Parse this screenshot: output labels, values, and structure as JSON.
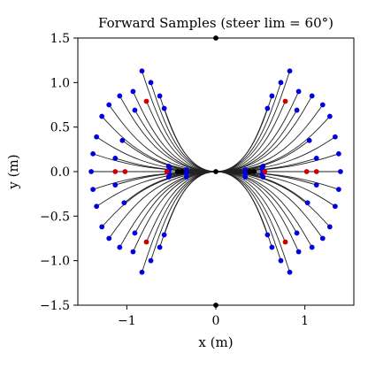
{
  "chart_data": {
    "type": "scatter",
    "title": "Forward Samples (steer lim = 60°)",
    "xlabel": "x (m)",
    "ylabel": "y (m)",
    "xlim": [
      -1.55,
      1.55
    ],
    "ylim": [
      -1.5,
      1.5
    ],
    "x_ticks": [
      {
        "value": -1,
        "label": "−1"
      },
      {
        "value": 0,
        "label": "0"
      },
      {
        "value": 1,
        "label": "1"
      }
    ],
    "y_ticks": [
      {
        "value": -1.5,
        "label": "−1.5"
      },
      {
        "value": -1.0,
        "label": "−1.0"
      },
      {
        "value": -0.5,
        "label": "−0.5"
      },
      {
        "value": 0.0,
        "label": "0.0"
      },
      {
        "value": 0.5,
        "label": "0.5"
      },
      {
        "value": 1.0,
        "label": "1.0"
      },
      {
        "value": 1.5,
        "label": "1.5"
      }
    ],
    "grid": false,
    "colors": {
      "blue": "#0000dd",
      "red": "#cc0000",
      "black": "#000000",
      "line": "#222222"
    },
    "origin": [
      0,
      0
    ],
    "series": [
      {
        "color": "blue",
        "points": [
          [
            0.83,
            1.13
          ],
          [
            0.73,
            1.0
          ],
          [
            0.63,
            0.85
          ],
          [
            0.93,
            0.9
          ],
          [
            0.58,
            0.71
          ],
          [
            1.08,
            0.85
          ],
          [
            1.2,
            0.75
          ],
          [
            0.91,
            0.69
          ],
          [
            1.28,
            0.62
          ],
          [
            1.34,
            0.39
          ],
          [
            1.38,
            0.2
          ],
          [
            1.4,
            0.0
          ],
          [
            1.38,
            -0.2
          ],
          [
            1.34,
            -0.39
          ],
          [
            1.28,
            -0.62
          ],
          [
            1.2,
            -0.75
          ],
          [
            1.08,
            -0.85
          ],
          [
            0.93,
            -0.9
          ],
          [
            0.91,
            -0.69
          ],
          [
            0.58,
            -0.71
          ],
          [
            0.63,
            -0.85
          ],
          [
            0.73,
            -1.0
          ],
          [
            0.83,
            -1.13
          ],
          [
            1.05,
            0.35
          ],
          [
            1.03,
            -0.35
          ],
          [
            1.13,
            0.15
          ],
          [
            1.13,
            -0.15
          ],
          [
            0.53,
            0.0
          ],
          [
            0.52,
            0.03
          ],
          [
            0.52,
            -0.03
          ],
          [
            0.53,
            0.06
          ],
          [
            0.53,
            -0.06
          ],
          [
            0.33,
            0.02
          ],
          [
            0.33,
            -0.02
          ],
          [
            0.33,
            -0.06
          ],
          [
            -0.83,
            1.13
          ],
          [
            -0.73,
            1.0
          ],
          [
            -0.63,
            0.85
          ],
          [
            -0.93,
            0.9
          ],
          [
            -0.58,
            0.71
          ],
          [
            -1.08,
            0.85
          ],
          [
            -1.2,
            0.75
          ],
          [
            -0.91,
            0.69
          ],
          [
            -1.28,
            0.62
          ],
          [
            -1.34,
            0.39
          ],
          [
            -1.38,
            0.2
          ],
          [
            -1.4,
            0.0
          ],
          [
            -1.38,
            -0.2
          ],
          [
            -1.34,
            -0.39
          ],
          [
            -1.28,
            -0.62
          ],
          [
            -1.2,
            -0.75
          ],
          [
            -1.08,
            -0.85
          ],
          [
            -0.93,
            -0.9
          ],
          [
            -0.91,
            -0.69
          ],
          [
            -0.58,
            -0.71
          ],
          [
            -0.63,
            -0.85
          ],
          [
            -0.73,
            -1.0
          ],
          [
            -0.83,
            -1.13
          ],
          [
            -1.05,
            0.35
          ],
          [
            -1.03,
            -0.35
          ],
          [
            -1.13,
            0.15
          ],
          [
            -1.13,
            -0.15
          ],
          [
            -0.53,
            0.0
          ],
          [
            -0.52,
            0.03
          ],
          [
            -0.52,
            -0.03
          ],
          [
            -0.53,
            0.06
          ],
          [
            -0.53,
            -0.06
          ],
          [
            -0.33,
            0.02
          ],
          [
            -0.33,
            -0.02
          ],
          [
            -0.33,
            -0.06
          ]
        ]
      },
      {
        "color": "red",
        "points": [
          [
            0.78,
            0.79
          ],
          [
            0.78,
            -0.79
          ],
          [
            1.02,
            0.0
          ],
          [
            1.13,
            0.0
          ],
          [
            0.55,
            0.0
          ],
          [
            -0.78,
            0.79
          ],
          [
            -0.78,
            -0.79
          ],
          [
            -1.02,
            0.0
          ],
          [
            -1.13,
            0.0
          ],
          [
            -0.55,
            0.0
          ]
        ]
      },
      {
        "color": "black",
        "points": [
          [
            0.0,
            1.5
          ],
          [
            0.0,
            -1.5
          ],
          [
            0.0,
            0.0
          ],
          [
            0.38,
            0.0
          ],
          [
            0.43,
            0.0
          ],
          [
            -0.38,
            0.0
          ],
          [
            -0.43,
            0.0
          ]
        ]
      }
    ]
  }
}
